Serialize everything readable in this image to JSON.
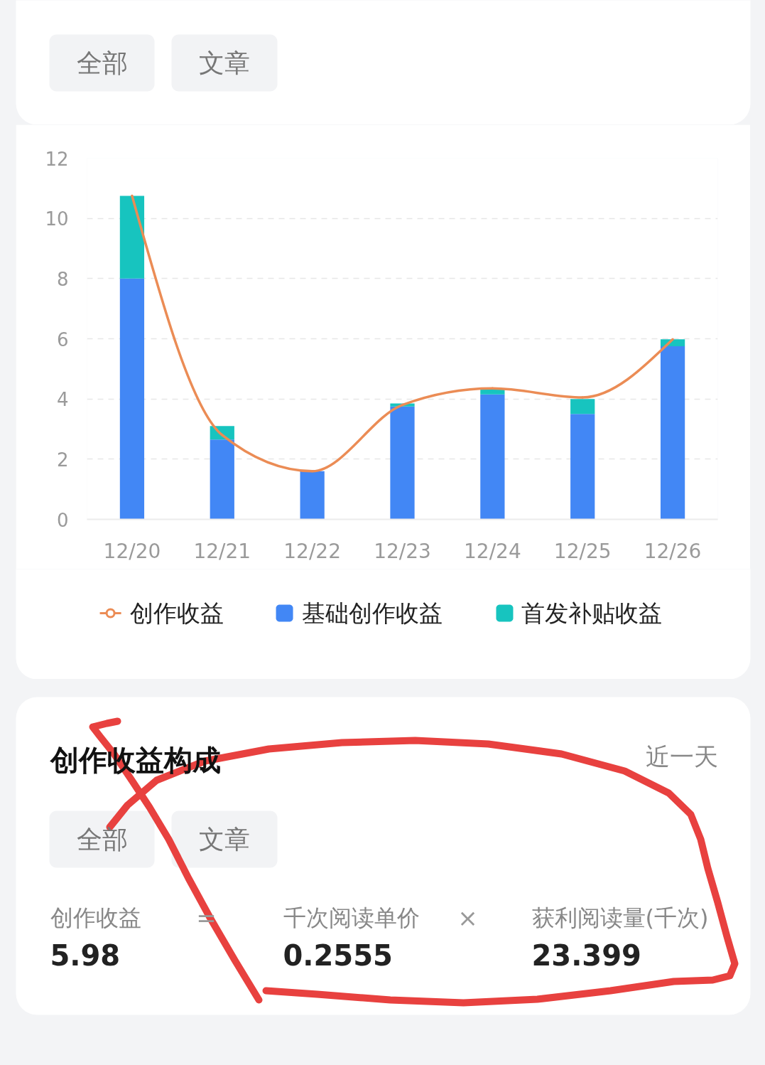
{
  "chart_data": [
    {
      "type": "bar",
      "categories": [
        "12/20",
        "12/21",
        "12/22",
        "12/23",
        "12/24",
        "12/25",
        "12/26"
      ],
      "series": [
        {
          "name": "创作收益",
          "type": "line",
          "color": "#eb8c55",
          "values": [
            10.75,
            2.8,
            1.6,
            3.8,
            4.35,
            4.05,
            5.98
          ]
        },
        {
          "name": "基础创作收益",
          "type": "bar",
          "color": "#4287f5",
          "values": [
            8.0,
            2.65,
            1.6,
            3.75,
            4.15,
            3.5,
            5.75
          ]
        },
        {
          "name": "首发补贴收益",
          "type": "bar",
          "color": "#17c4bf",
          "values": [
            2.75,
            0.45,
            0,
            0.1,
            0.2,
            0.5,
            0.23
          ]
        }
      ],
      "stacked": true,
      "ylim": [
        0,
        12
      ],
      "yticks": [
        0,
        2,
        4,
        6,
        8,
        10,
        12
      ],
      "grid": "y",
      "legend": "bottom",
      "annotations": [
        "全部",
        "文章"
      ]
    },
    {
      "type": "other",
      "title": "创作收益构成",
      "annotations": [
        "近一天",
        "全部",
        "文章",
        "创作收益",
        "5.98",
        "=",
        "千次阅读单价",
        "0.2555",
        "×",
        "获利阅读量(千次)",
        "23.399"
      ]
    }
  ]
}
